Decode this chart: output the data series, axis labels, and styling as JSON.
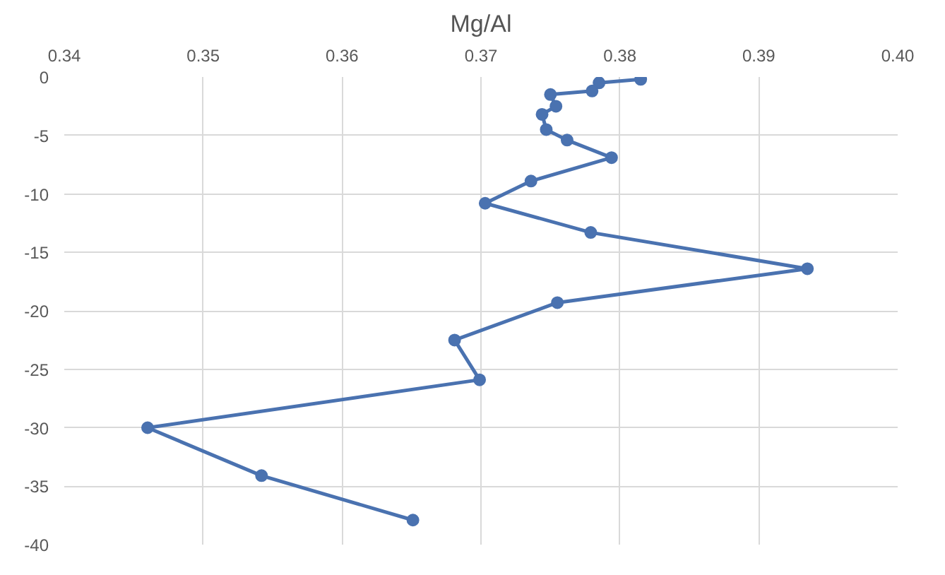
{
  "chart_data": {
    "type": "line",
    "title": "Mg/Al",
    "x": [
      0.3815,
      0.3785,
      0.378,
      0.375,
      0.3754,
      0.3744,
      0.3747,
      0.3762,
      0.3794,
      0.3736,
      0.3703,
      0.3779,
      0.3935,
      0.3755,
      0.3681,
      0.3699,
      0.346,
      0.3542,
      0.3651
    ],
    "series": [
      {
        "color": "#4a72b0",
        "values": [
          -0.2,
          -0.5,
          -1.2,
          -1.5,
          -2.5,
          -3.2,
          -4.5,
          -5.4,
          -6.9,
          -8.9,
          -10.8,
          -13.3,
          -16.4,
          -19.3,
          -22.5,
          -25.9,
          -30.0,
          -34.1,
          -37.9
        ]
      }
    ],
    "xlim": [
      0.34,
      0.4
    ],
    "xticks": [
      {
        "value": 0.34,
        "label": "0.34"
      },
      {
        "value": 0.35,
        "label": "0.35"
      },
      {
        "value": 0.36,
        "label": "0.36"
      },
      {
        "value": 0.37,
        "label": "0.37"
      },
      {
        "value": 0.38,
        "label": "0.38"
      },
      {
        "value": 0.39,
        "label": "0.39"
      },
      {
        "value": 0.4,
        "label": "0.40"
      }
    ],
    "ylim": [
      -40,
      0
    ],
    "yticks": [
      0,
      -5,
      -10,
      -15,
      -20,
      -25,
      -30,
      -35,
      -40
    ],
    "grid": true,
    "marker": "circle",
    "line_style": "solid"
  }
}
